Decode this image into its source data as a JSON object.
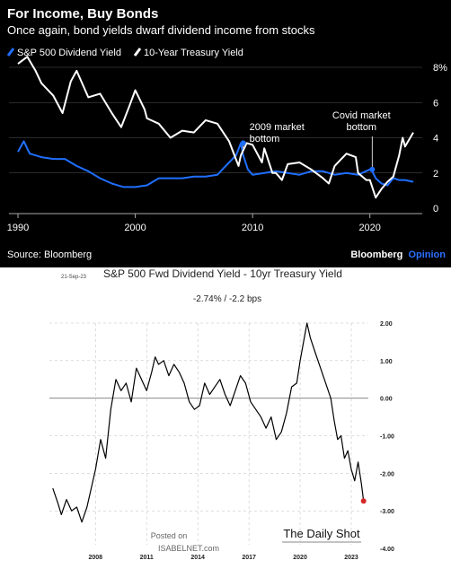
{
  "chart_data": [
    {
      "type": "line",
      "title": "For Income, Buy Bonds",
      "subtitle": "Once again, bond yields dwarf dividend income from stocks",
      "xlim": [
        1990,
        2023.7
      ],
      "ylim": [
        0,
        8
      ],
      "x_ticks": [
        1990,
        2000,
        2010,
        2020
      ],
      "x_tick_labels": [
        "1990",
        "2000",
        "2010",
        "2020"
      ],
      "y_ticks": [
        0,
        2,
        4,
        6,
        8
      ],
      "y_tick_labels": [
        "0",
        "2",
        "4",
        "6",
        "8%"
      ],
      "legend_position": "top-left",
      "series": [
        {
          "name": "S&P 500 Dividend Yield",
          "color": "#1f6fff",
          "x": [
            1990,
            1990.5,
            1991,
            1992,
            1993,
            1994,
            1995,
            1996,
            1997,
            1998,
            1999,
            2000,
            2001,
            2002,
            2003,
            2004,
            2005,
            2006,
            2007,
            2008,
            2008.6,
            2009.0,
            2009.2,
            2009.6,
            2010,
            2011,
            2012,
            2013,
            2014,
            2015,
            2016,
            2017,
            2018,
            2019,
            2020.0,
            2020.2,
            2020.5,
            2021,
            2021.5,
            2022,
            2022.5,
            2023,
            2023.7
          ],
          "y": [
            3.2,
            3.8,
            3.1,
            2.9,
            2.8,
            2.8,
            2.4,
            2.1,
            1.7,
            1.4,
            1.2,
            1.2,
            1.3,
            1.7,
            1.7,
            1.7,
            1.8,
            1.8,
            1.9,
            2.6,
            3.0,
            3.7,
            3.0,
            2.2,
            1.9,
            2.0,
            2.1,
            2.0,
            1.9,
            2.1,
            2.1,
            1.9,
            2.0,
            1.9,
            2.2,
            2.1,
            1.7,
            1.4,
            1.3,
            1.7,
            1.6,
            1.6,
            1.5
          ]
        },
        {
          "name": "10-Year Treasury Yield",
          "color": "#ffffff",
          "x": [
            1990,
            1990.8,
            1991.5,
            1992,
            1993,
            1993.8,
            1994.5,
            1995,
            1996,
            1997,
            1998,
            1998.8,
            1999.5,
            2000,
            2000.8,
            2001,
            2002,
            2003,
            2004,
            2005,
            2006,
            2007,
            2008,
            2008.8,
            2009,
            2009.5,
            2010,
            2010.8,
            2011,
            2011.7,
            2012,
            2012.5,
            2013,
            2014,
            2015,
            2016,
            2016.5,
            2017,
            2018,
            2018.8,
            2019,
            2019.7,
            2020,
            2020.5,
            2021,
            2021.5,
            2022,
            2022.5,
            2022.8,
            2023,
            2023.7
          ],
          "y": [
            8.2,
            8.6,
            7.8,
            7.1,
            6.4,
            5.4,
            7.2,
            7.8,
            6.3,
            6.5,
            5.4,
            4.6,
            5.8,
            6.7,
            5.6,
            5.1,
            4.8,
            4.0,
            4.4,
            4.3,
            5.0,
            4.8,
            3.8,
            2.4,
            3.0,
            3.7,
            3.6,
            2.6,
            3.4,
            2.0,
            2.0,
            1.6,
            2.5,
            2.6,
            2.2,
            1.7,
            1.4,
            2.4,
            3.1,
            2.9,
            2.0,
            1.6,
            1.6,
            0.6,
            1.1,
            1.5,
            1.8,
            3.0,
            4.0,
            3.5,
            4.3
          ]
        }
      ],
      "annotations": [
        {
          "text": [
            "2009 market",
            "bottom"
          ],
          "x": 2009.2,
          "y": 3.7
        },
        {
          "text": [
            "Covid market",
            "bottom"
          ],
          "x": 2020.2,
          "y": 2.2
        }
      ],
      "source": "Source: Bloomberg",
      "brand": {
        "main": "Bloomberg",
        "accent": "Opinion",
        "accent_color": "#2b6fff"
      }
    },
    {
      "type": "line",
      "title": "S&P 500 Fwd Dividend Yield - 10yr Treasury Yield",
      "date": "21-Sep-23",
      "current_value": "-2.74%  /  -2.2 bps",
      "xlim": [
        2005.3,
        2024.0
      ],
      "ylim": [
        -4.0,
        2.0
      ],
      "x_ticks": [
        2008,
        2011,
        2014,
        2017,
        2020,
        2023
      ],
      "x_tick_labels": [
        "2008",
        "2011",
        "2014",
        "2017",
        "2020",
        "2023"
      ],
      "y_ticks": [
        2,
        1,
        0,
        -1,
        -2,
        -3,
        -4
      ],
      "y_tick_labels": [
        "2.00",
        "1.00",
        "0.00",
        "-1.00",
        "-2.00",
        "-3.00",
        "-4.00"
      ],
      "series": [
        {
          "name": "",
          "color": "#000000",
          "x": [
            2005.5,
            2005.8,
            2006.0,
            2006.3,
            2006.6,
            2006.9,
            2007.2,
            2007.5,
            2007.8,
            2008.0,
            2008.3,
            2008.6,
            2008.9,
            2009.2,
            2009.5,
            2009.8,
            2010.1,
            2010.4,
            2010.7,
            2011.0,
            2011.3,
            2011.5,
            2011.7,
            2012.0,
            2012.3,
            2012.6,
            2012.9,
            2013.2,
            2013.5,
            2013.8,
            2014.1,
            2014.4,
            2014.7,
            2015.0,
            2015.3,
            2015.6,
            2015.9,
            2016.2,
            2016.5,
            2016.8,
            2017.1,
            2017.4,
            2017.7,
            2018.0,
            2018.3,
            2018.6,
            2018.9,
            2019.2,
            2019.5,
            2019.8,
            2020.0,
            2020.2,
            2020.4,
            2020.6,
            2020.9,
            2021.2,
            2021.5,
            2021.8,
            2022.0,
            2022.2,
            2022.4,
            2022.6,
            2022.8,
            2023.0,
            2023.2,
            2023.4,
            2023.6,
            2023.72
          ],
          "y": [
            -2.4,
            -2.8,
            -3.1,
            -2.7,
            -3.0,
            -2.9,
            -3.3,
            -2.9,
            -2.3,
            -1.9,
            -1.1,
            -1.6,
            -0.3,
            0.5,
            0.2,
            0.4,
            -0.1,
            0.8,
            0.5,
            0.2,
            0.7,
            1.1,
            0.9,
            1.0,
            0.6,
            0.9,
            0.7,
            0.4,
            -0.1,
            -0.3,
            -0.2,
            0.4,
            0.1,
            0.3,
            0.5,
            0.1,
            -0.2,
            0.2,
            0.6,
            0.4,
            -0.1,
            -0.3,
            -0.5,
            -0.8,
            -0.5,
            -1.1,
            -0.9,
            -0.4,
            0.3,
            0.4,
            1.0,
            1.5,
            2.0,
            1.6,
            1.2,
            0.8,
            0.4,
            0.0,
            -0.6,
            -1.1,
            -1.0,
            -1.6,
            -1.4,
            -1.9,
            -2.2,
            -1.7,
            -2.3,
            -2.74
          ]
        }
      ],
      "endpoint": {
        "x": 2023.72,
        "y": -2.74,
        "color": "#d62728"
      },
      "brand": "The Daily Shot",
      "watermark": {
        "line1": "Posted on",
        "line2": "ISABELNET.com"
      }
    }
  ]
}
